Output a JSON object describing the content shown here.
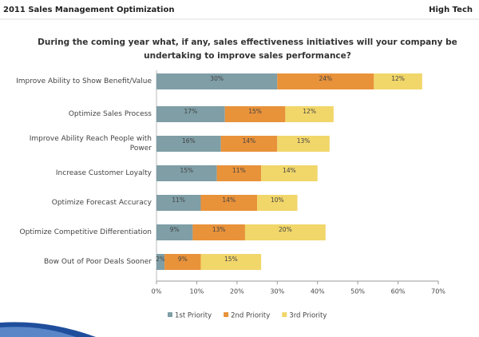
{
  "header": {
    "left": "2011 Sales Management Optimization",
    "right": "High Tech"
  },
  "chart_data": {
    "type": "stacked-bar-horizontal",
    "title": [
      "During the coming year what, if any, sales effectiveness initiatives will your company be",
      "undertaking to improve sales performance?"
    ],
    "categories": [
      "Improve Ability to Show Benefit/Value",
      "Optimize Sales Process",
      "Improve Ability Reach People with\nPower",
      "Increase Customer Loyalty",
      "Optimize Forecast Accuracy",
      "Optimize Competitive Differentiation",
      "Bow Out of Poor Deals Sooner"
    ],
    "series": [
      {
        "name": "1st Priority",
        "color": "#7f9ea6",
        "values": [
          30,
          17,
          16,
          15,
          11,
          9,
          2
        ],
        "value_labels": [
          "30%",
          "17%",
          "16%",
          "15%",
          "11%",
          "9%",
          "2%"
        ]
      },
      {
        "name": "2nd Priority",
        "color": "#e8923a",
        "values": [
          24,
          15,
          14,
          11,
          14,
          13,
          9
        ],
        "value_labels": [
          "24%",
          "15%",
          "14%",
          "11%",
          "14%",
          "13%",
          "9%"
        ]
      },
      {
        "name": "3rd Priority",
        "color": "#f1d66a",
        "values": [
          12,
          12,
          13,
          14,
          10,
          20,
          15
        ],
        "value_labels": [
          "12%",
          "12%",
          "13%",
          "14%",
          "10%",
          "20%",
          "15%"
        ]
      }
    ],
    "xlim": [
      0,
      70
    ],
    "xticks": [
      {
        "value": 0,
        "label": "0%"
      },
      {
        "value": 10,
        "label": "10%"
      },
      {
        "value": 20,
        "label": "20%"
      },
      {
        "value": 30,
        "label": "30%"
      },
      {
        "value": 40,
        "label": "40%"
      },
      {
        "value": 50,
        "label": "50%"
      },
      {
        "value": 60,
        "label": "60%"
      },
      {
        "value": 70,
        "label": "70%"
      }
    ],
    "grid": false,
    "legend": "bottom"
  }
}
